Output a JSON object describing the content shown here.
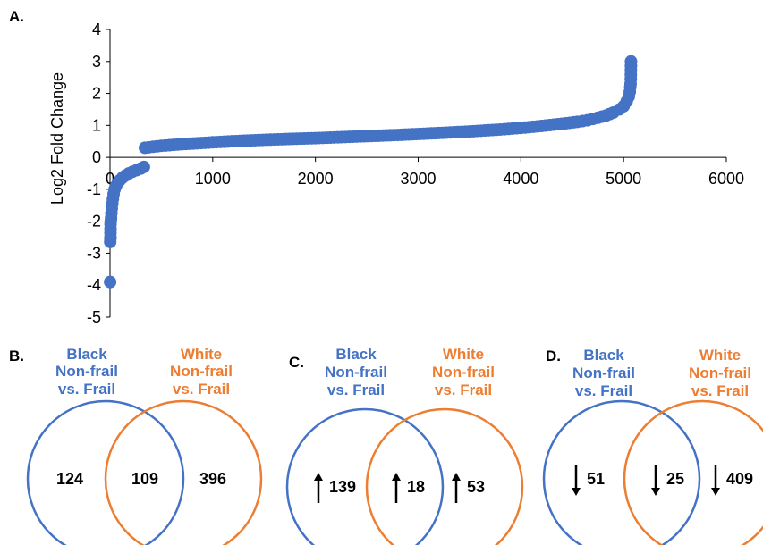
{
  "panels": {
    "a": "A.",
    "b": "B.",
    "c": "C.",
    "d": "D."
  },
  "colors": {
    "point": "#4472c4",
    "blue": "#4472c4",
    "orange": "#ed7d31"
  },
  "chart_data": {
    "type": "scatter",
    "ylabel": "Log2 Fold Change",
    "xlim": [
      0,
      6000
    ],
    "ylim": [
      -5,
      4
    ],
    "xticks": [
      "0",
      "1000",
      "2000",
      "3000",
      "4000",
      "5000",
      "6000"
    ],
    "yticks": [
      "4",
      "3",
      "2",
      "1",
      "0",
      "-1",
      "-2",
      "-3",
      "-4",
      "-5"
    ],
    "grid": false,
    "legend": "none",
    "points": [
      [
        1,
        -3.9
      ],
      [
        2,
        -2.65
      ],
      [
        3,
        -2.55
      ],
      [
        4,
        -2.5
      ],
      [
        5,
        -2.1
      ],
      [
        7,
        -2.0
      ],
      [
        10,
        -1.9
      ],
      [
        13,
        -1.75
      ],
      [
        17,
        -1.6
      ],
      [
        22,
        -1.45
      ],
      [
        28,
        -1.3
      ],
      [
        35,
        -1.15
      ],
      [
        45,
        -1.0
      ],
      [
        58,
        -0.9
      ],
      [
        75,
        -0.8
      ],
      [
        95,
        -0.72
      ],
      [
        120,
        -0.64
      ],
      [
        150,
        -0.57
      ],
      [
        185,
        -0.5
      ],
      [
        220,
        -0.45
      ],
      [
        260,
        -0.4
      ],
      [
        300,
        -0.35
      ],
      [
        330,
        -0.3
      ],
      [
        340,
        0.3
      ],
      [
        500,
        0.36
      ],
      [
        700,
        0.41
      ],
      [
        1000,
        0.47
      ],
      [
        1300,
        0.52
      ],
      [
        1600,
        0.56
      ],
      [
        2000,
        0.6
      ],
      [
        2400,
        0.65
      ],
      [
        2800,
        0.7
      ],
      [
        3200,
        0.76
      ],
      [
        3500,
        0.81
      ],
      [
        3800,
        0.87
      ],
      [
        4000,
        0.92
      ],
      [
        4200,
        0.98
      ],
      [
        4400,
        1.05
      ],
      [
        4550,
        1.11
      ],
      [
        4650,
        1.16
      ],
      [
        4750,
        1.24
      ],
      [
        4830,
        1.31
      ],
      [
        4900,
        1.4
      ],
      [
        4960,
        1.5
      ],
      [
        5000,
        1.6
      ],
      [
        5030,
        1.75
      ],
      [
        5050,
        1.9
      ],
      [
        5060,
        2.05
      ],
      [
        5065,
        2.2
      ],
      [
        5068,
        2.3
      ],
      [
        5070,
        2.45
      ],
      [
        5072,
        3.0
      ]
    ]
  },
  "venns": [
    {
      "left_title": [
        "Black",
        "Non-frail",
        "vs. Frail"
      ],
      "right_title": [
        "White",
        "Non-frail",
        "vs. Frail"
      ],
      "values": [
        "124",
        "109",
        "396"
      ],
      "arrow": "none"
    },
    {
      "left_title": [
        "Black",
        "Non-frail",
        "vs. Frail"
      ],
      "right_title": [
        "White",
        "Non-frail",
        "vs. Frail"
      ],
      "values": [
        "139",
        "18",
        "53"
      ],
      "arrow": "up"
    },
    {
      "left_title": [
        "Black",
        "Non-frail",
        "vs. Frail"
      ],
      "right_title": [
        "White",
        "Non-frail",
        "vs. Frail"
      ],
      "values": [
        "51",
        "25",
        "409"
      ],
      "arrow": "down"
    }
  ]
}
